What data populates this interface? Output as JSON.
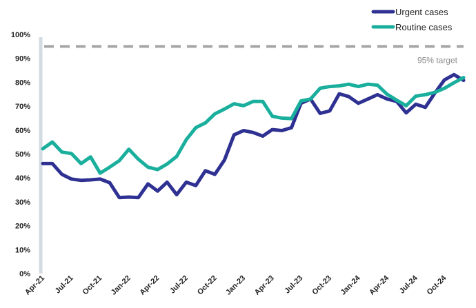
{
  "chart_data": {
    "type": "line",
    "title": "",
    "xlabel": "",
    "ylabel": "",
    "ylim": [
      0,
      100
    ],
    "y_ticks": [
      0,
      10,
      20,
      30,
      40,
      50,
      60,
      70,
      80,
      90,
      100
    ],
    "y_tick_labels": [
      "0%",
      "10%",
      "20%",
      "30%",
      "40%",
      "50%",
      "60%",
      "70%",
      "80%",
      "90%",
      "100%"
    ],
    "x": [
      "Apr-21",
      "May-21",
      "Jun-21",
      "Jul-21",
      "Aug-21",
      "Sep-21",
      "Oct-21",
      "Nov-21",
      "Dec-21",
      "Jan-22",
      "Feb-22",
      "Mar-22",
      "Apr-22",
      "May-22",
      "Jun-22",
      "Jul-22",
      "Aug-22",
      "Sep-22",
      "Oct-22",
      "Nov-22",
      "Dec-22",
      "Jan-23",
      "Feb-23",
      "Mar-23",
      "Apr-23",
      "May-23",
      "Jun-23",
      "Jul-23",
      "Aug-23",
      "Sep-23",
      "Oct-23",
      "Nov-23",
      "Dec-23",
      "Jan-24",
      "Feb-24",
      "Mar-24",
      "Apr-24",
      "May-24",
      "Jun-24",
      "Jul-24",
      "Aug-24",
      "Sep-24",
      "Oct-24",
      "Nov-24",
      "Dec-24"
    ],
    "x_tick_labels": [
      "Apr-21",
      "Jul-21",
      "Oct-21",
      "Jan-22",
      "Apr-22",
      "Jul-22",
      "Oct-22",
      "Jan-23",
      "Apr-23",
      "Jul-23",
      "Oct-23",
      "Jan-24",
      "Apr-24",
      "Jul-24",
      "Oct-24"
    ],
    "grid": false,
    "legend_position": "top-right",
    "series": [
      {
        "name": "Urgent cases",
        "color": "#2e3192",
        "values": [
          46,
          46,
          41.5,
          39.5,
          39,
          39.2,
          39.5,
          38,
          31.8,
          32,
          31.8,
          37.5,
          34.5,
          38.2,
          33,
          38.2,
          36.8,
          43,
          41.5,
          47.5,
          58,
          59.8,
          59,
          57.5,
          60.2,
          59.8,
          61,
          71.2,
          73,
          67,
          68,
          75.2,
          74,
          71.2,
          73,
          74.8,
          73,
          72,
          67.2,
          70.8,
          69.5,
          75.5,
          81,
          83.2,
          80.8
        ]
      },
      {
        "name": "Routine cases",
        "color": "#1aaf9d",
        "values": [
          52.2,
          55,
          50.8,
          50.2,
          46,
          48.8,
          42,
          44.5,
          47.2,
          52,
          47.8,
          44.5,
          43.5,
          45.8,
          49,
          56,
          61,
          63,
          66.8,
          68.8,
          71,
          70.2,
          72,
          72,
          65.8,
          65,
          64.8,
          72.2,
          73,
          77.5,
          78.2,
          78.5,
          79.2,
          78.2,
          79.2,
          78.8,
          75,
          72.5,
          70.2,
          74.2,
          74.8,
          75.8,
          77.5,
          79.8,
          82
        ]
      }
    ],
    "annotations": [
      {
        "type": "hline",
        "y": 95,
        "label": "95% target",
        "color": "#a6a6a6"
      }
    ]
  }
}
